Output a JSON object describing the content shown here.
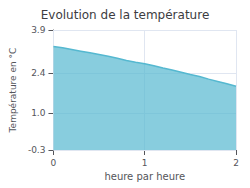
{
  "chart_data": {
    "type": "area",
    "title": "Evolution de la température",
    "xlabel": "heure par heure",
    "ylabel": "Température en °C",
    "x": [
      0,
      0.1,
      0.2,
      0.3,
      0.4,
      0.5,
      0.6,
      0.7,
      0.8,
      0.9,
      1.0,
      1.1,
      1.2,
      1.3,
      1.4,
      1.5,
      1.6,
      1.7,
      1.8,
      1.9,
      2.0
    ],
    "values": [
      3.32,
      3.28,
      3.22,
      3.16,
      3.1,
      3.04,
      2.98,
      2.91,
      2.83,
      2.77,
      2.72,
      2.65,
      2.57,
      2.5,
      2.42,
      2.34,
      2.27,
      2.18,
      2.1,
      2.02,
      1.93
    ],
    "color": "#55b8d0",
    "xlim": [
      0,
      2
    ],
    "xticks": [
      0,
      1,
      2
    ],
    "ylim": [
      -0.3,
      3.9
    ],
    "yticks": [
      -0.3,
      {
        "value": 1.0,
        "label": "1.0"
      },
      2.4,
      3.9
    ],
    "grid": true
  }
}
